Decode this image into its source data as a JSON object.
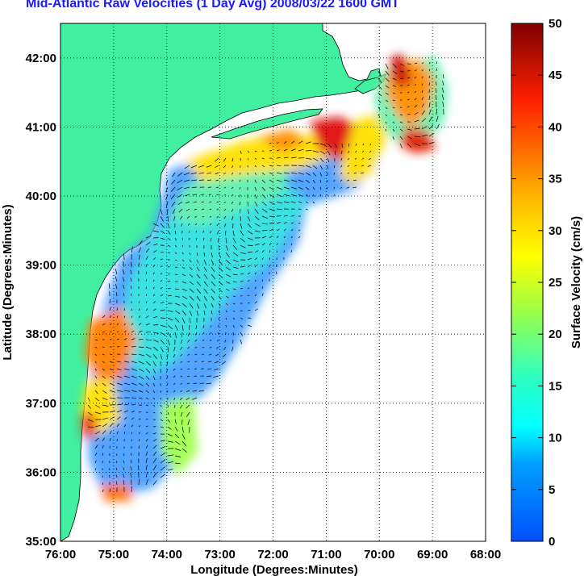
{
  "title": "Mid-Atlantic Raw Velocities (1 Day Avg) 2008/03/22 1600 GMT",
  "xlabel": "Longitude (Degrees:Minutes)",
  "ylabel": "Latitude (Degrees:Minutes)",
  "colorbar_label": "Surface Velocity (cm/s)",
  "x_ticks": [
    "76:00",
    "75:00",
    "74:00",
    "73:00",
    "72:00",
    "71:00",
    "70:00",
    "69:00",
    "68:00"
  ],
  "y_ticks": [
    "35:00",
    "36:00",
    "37:00",
    "38:00",
    "39:00",
    "40:00",
    "41:00",
    "42:00"
  ],
  "colorbar_ticks": [
    "0",
    "5",
    "10",
    "15",
    "20",
    "25",
    "30",
    "35",
    "40",
    "45",
    "50"
  ],
  "chart_data": {
    "type": "heatmap",
    "xlim": [
      -76,
      -68
    ],
    "ylim": [
      35,
      42.5
    ],
    "colorbar_range": [
      0,
      50
    ],
    "colormap": "jet",
    "land_color": "#40f0a0",
    "ocean_color": "#ffffff",
    "grid": true,
    "grid_style": "dotted"
  }
}
